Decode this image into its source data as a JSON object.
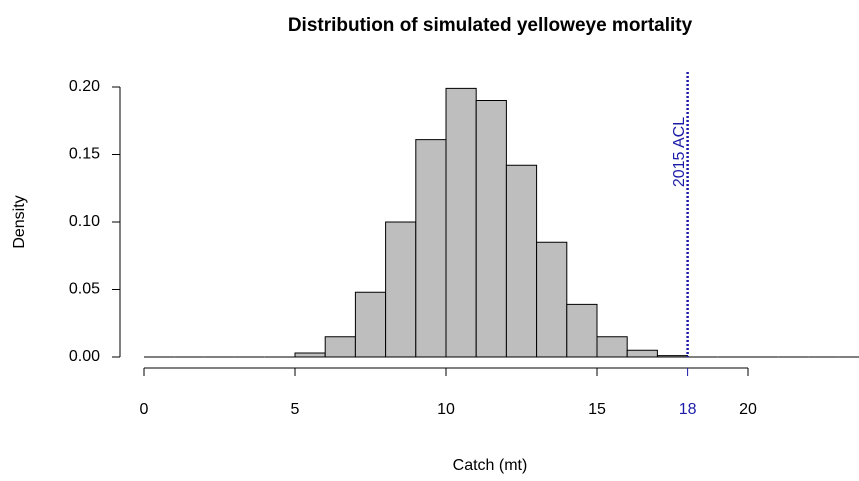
{
  "chart_data": {
    "type": "histogram",
    "title": "Distribution of simulated yelloweye mortality",
    "xlabel": "Catch (mt)",
    "ylabel": "Density",
    "bins": [
      0,
      1,
      2,
      3,
      4,
      5,
      6,
      7,
      8,
      9,
      10,
      11,
      12,
      13,
      14,
      15,
      16,
      17,
      18,
      19,
      20,
      21,
      22,
      23,
      24
    ],
    "values": [
      0,
      0,
      0,
      0,
      0,
      0.003,
      0.015,
      0.048,
      0.1,
      0.161,
      0.199,
      0.19,
      0.142,
      0.085,
      0.039,
      0.015,
      0.005,
      0.001,
      0,
      0,
      0,
      0,
      0,
      0
    ],
    "color": "#bebebe",
    "xlim": [
      0,
      24
    ],
    "ylim": [
      0,
      0.2
    ],
    "xticks": [
      0,
      5,
      10,
      15,
      20
    ],
    "yticks": [
      {
        "value": 0,
        "label": "0.00"
      },
      {
        "value": 0.05,
        "label": "0.05"
      },
      {
        "value": 0.1,
        "label": "0.10"
      },
      {
        "value": 0.15,
        "label": "0.15"
      },
      {
        "value": 0.2,
        "label": "0.20"
      }
    ],
    "vline": {
      "value": 18,
      "label": "2015 ACL",
      "color": "#1c1ca8"
    }
  }
}
